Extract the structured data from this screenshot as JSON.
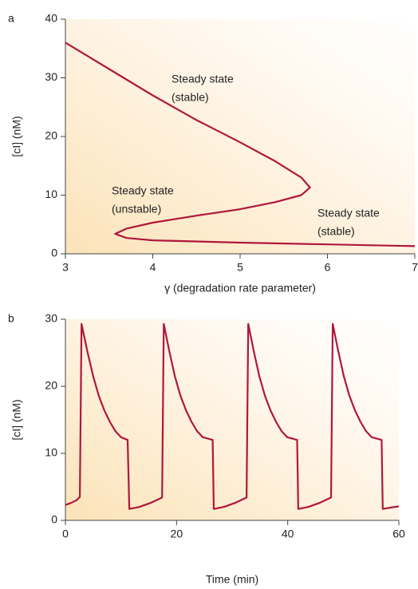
{
  "chart_data": [
    {
      "type": "line",
      "panel": "a",
      "x_label": "γ (degradation rate parameter)",
      "y_label": "[cI] (nM)",
      "x": [
        3,
        3.5,
        4,
        4.5,
        5,
        5.4,
        5.7,
        5.8,
        5.7,
        5.4,
        5,
        4.5,
        4,
        3.7,
        3.57,
        3.7,
        4,
        5,
        6,
        7
      ],
      "values": [
        36,
        31.5,
        27,
        22.8,
        19,
        15.8,
        13,
        11.3,
        10,
        8.8,
        7.6,
        6.5,
        5.3,
        4.3,
        3.4,
        2.7,
        2.3,
        1.9,
        1.6,
        1.3
      ],
      "color": "#b0173c",
      "xlim": [
        3,
        7
      ],
      "ylim": [
        0,
        40
      ],
      "xticks": [
        3,
        4,
        5,
        6,
        7
      ],
      "yticks": [
        0,
        10,
        20,
        30,
        40
      ],
      "annotations": [
        [
          "Steady state",
          "(stable)"
        ],
        [
          "Steady state",
          "(unstable)"
        ],
        [
          "Steady state",
          "(stable)"
        ]
      ]
    },
    {
      "type": "line",
      "panel": "b",
      "x_label": "Time (min)",
      "y_label": "[cI] (nM)",
      "x": [
        0,
        1,
        2,
        2.6,
        2.9,
        4,
        5,
        6,
        7,
        8,
        9,
        10,
        11.2,
        11.5,
        13.3,
        15.3,
        17.4,
        17.7,
        18.7,
        19.7,
        20.7,
        21.7,
        22.7,
        23.7,
        24.7,
        26.5,
        26.7,
        28.5,
        30.5,
        32.6,
        32.9,
        33.9,
        34.9,
        35.9,
        36.9,
        37.9,
        38.9,
        39.9,
        41.7,
        41.9,
        43.7,
        45.7,
        47.8,
        48.1,
        49.1,
        50.1,
        51.1,
        52.1,
        53.1,
        54.1,
        55.1,
        56.9,
        57.1,
        58.5,
        60
      ],
      "values": [
        2.3,
        2.6,
        3.0,
        3.5,
        29.3,
        25,
        21.5,
        18.6,
        16.4,
        14.7,
        13.3,
        12.4,
        12,
        1.7,
        2.0,
        2.6,
        3.4,
        29.3,
        25.2,
        21.5,
        18.6,
        16.4,
        14.7,
        13.3,
        12.4,
        12,
        1.7,
        2.0,
        2.6,
        3.4,
        29.3,
        25.2,
        21.5,
        18.6,
        16.4,
        14.7,
        13.3,
        12.4,
        12,
        1.7,
        2.0,
        2.6,
        3.4,
        29.3,
        25.2,
        21.5,
        18.6,
        16.4,
        14.7,
        13.3,
        12.4,
        12,
        1.7,
        1.9,
        2.1
      ],
      "color": "#b0173c",
      "xlim": [
        0,
        60
      ],
      "ylim": [
        0,
        30
      ],
      "xticks": [
        0,
        20,
        40,
        60
      ],
      "yticks": [
        0,
        10,
        20,
        30
      ]
    }
  ]
}
